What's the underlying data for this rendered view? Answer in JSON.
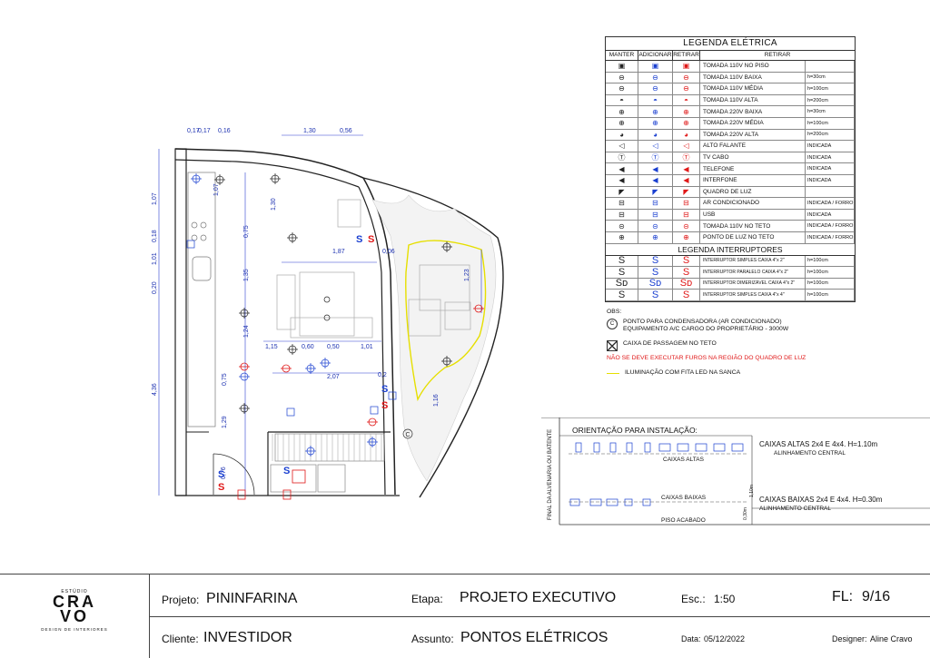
{
  "legend": {
    "title": "LEGENDA ELÉTRICA",
    "col_manter": "MANTER",
    "col_adicionar": "ADICIONAR",
    "col_retirar": "RETIRAR",
    "col_retirar2": "RETIRAR",
    "items": [
      {
        "icon": "▣",
        "label": "TOMADA 110V NO PISO",
        "height": ""
      },
      {
        "icon": "⊖",
        "label": "TOMADA 110V BAIXA",
        "height": "h=30cm"
      },
      {
        "icon": "⊖",
        "label": "TOMADA 110V MÉDIA",
        "height": "h=100cm"
      },
      {
        "icon": "◓",
        "label": "TOMADA 110V ALTA",
        "height": "h=200cm"
      },
      {
        "icon": "⊕",
        "label": "TOMADA 220V BAIXA",
        "height": "h=30cm"
      },
      {
        "icon": "⊕",
        "label": "TOMADA 220V MÉDIA",
        "height": "h=100cm"
      },
      {
        "icon": "◕",
        "label": "TOMADA 220V ALTA",
        "height": "h=200cm"
      },
      {
        "icon": "◁",
        "label": "ALTO FALANTE",
        "height": "INDICADA"
      },
      {
        "icon": "Ⓣ",
        "label": "TV CABO",
        "height": "INDICADA"
      },
      {
        "icon": "◀",
        "label": "TELEFONE",
        "height": "INDICADA"
      },
      {
        "icon": "◀",
        "label": "INTERFONE",
        "height": "INDICADA"
      },
      {
        "icon": "◤",
        "label": "QUADRO DE LUZ",
        "height": ""
      },
      {
        "icon": "⊟",
        "label": "AR CONDICIONADO",
        "height": "INDICADA / FORRO"
      },
      {
        "icon": "⊟",
        "label": "USB",
        "height": "INDICADA"
      },
      {
        "icon": "⊝",
        "label": "TOMADA 110V NO TETO",
        "height": "INDICADA / FORRO"
      },
      {
        "icon": "⊕",
        "label": "PONTO DE LUZ NO TETO",
        "height": "INDICADA / FORRO"
      }
    ],
    "switch_title": "LEGENDA INTERRUPTORES",
    "switches": [
      {
        "icon": "S",
        "label": "INTERRUPTOR SIMPLES CAIXA 4\"x 2\"",
        "height": "h=100cm"
      },
      {
        "icon": "S",
        "label": "INTERRUPTOR PARALELO CAIXA 4\"x 2\"",
        "height": "h=100cm"
      },
      {
        "icon": "Sᴅ",
        "label": "INTERRUPTOR DIMERIZÁVEL CAIXA 4\"x 2\"",
        "height": "h=100cm"
      },
      {
        "icon": "S",
        "label": "INTERRUPTOR SIMPLES CAIXA 4\"x 4\"",
        "height": "h=100cm"
      }
    ]
  },
  "obs": {
    "title": "OBS:",
    "c_symbol": "C",
    "condensadora_1": "PONTO PARA CONDENSADORA (AR CONDICIONADO)",
    "condensadora_2": "EQUIPAMENTO A/C CARGO DO PROPRIETÁRIO - 3000W",
    "caixa_passagem": "CAIXA DE PASSAGEM NO TETO",
    "aviso": "NÃO SE DEVE EXECUTAR FUROS NA REGIÃO DO QUADRO DE LUZ",
    "led": "ILUMINAÇÃO COM FITA LED NA SANCA"
  },
  "orientation": {
    "title": "ORIENTAÇÃO PARA INSTALAÇÃO:",
    "side": "FINAL DA ALVENARIA OU BATENTE",
    "caixas_altas": "CAIXAS ALTAS",
    "caixas_baixas": "CAIXAS BAIXAS",
    "piso": "PISO ACABADO",
    "h_alta": "1,10m",
    "h_baixa": "0,30m",
    "altas_title": "CAIXAS ALTAS 2x4 E 4x4. H=1.10m",
    "altas_sub": "ALINHAMENTO CENTRAL",
    "baixas_title": "CAIXAS BAIXAS 2x4 E 4x4. H=0.30m",
    "baixas_sub": "ALINHAMENTO CENTRAL"
  },
  "dims": {
    "d1": "0,17",
    "d2": "0,17",
    "d3": "0,16",
    "d4": "1,30",
    "d5": "0,56",
    "d6": "1,07",
    "d7": "1,07",
    "d8": "1,30",
    "d9": "0,75",
    "d10": "1,87",
    "d11": "0,06",
    "d12": "1,23",
    "d13": "1,01",
    "d14": "0,18",
    "d15": "0,20",
    "d16": "1,35",
    "d17": "1,24",
    "d18": "1,15",
    "d19": "0,60",
    "d20": "0,50",
    "d21": "1,01",
    "d22": "2,07",
    "d23": "0,75",
    "d24": "4,36",
    "d25": "1,29",
    "d26": "1,16",
    "d27": "0,76",
    "d28": "0,2"
  },
  "title_block": {
    "logo_top": "ESTÚDIO",
    "logo_line1": "CRA",
    "logo_line2": "VO",
    "logo_bottom": "DESIGN DE INTERIORES",
    "projeto_label": "Projeto:",
    "projeto": "PININFARINA",
    "etapa_label": "Etapa:",
    "etapa": "PROJETO EXECUTIVO",
    "esc_label": "Esc.:",
    "esc": "1:50",
    "fl_label": "FL:",
    "fl": "9/16",
    "cliente_label": "Cliente:",
    "cliente": "INVESTIDOR",
    "assunto_label": "Assunto:",
    "assunto": "PONTOS ELÉTRICOS",
    "data_label": "Data:",
    "data": "05/12/2022",
    "designer_label": "Designer:",
    "designer": "Aline Cravo"
  },
  "colors": {
    "existing": "#222222",
    "add": "#1a3fd0",
    "remove": "#e01818",
    "led": "#e6df00"
  }
}
